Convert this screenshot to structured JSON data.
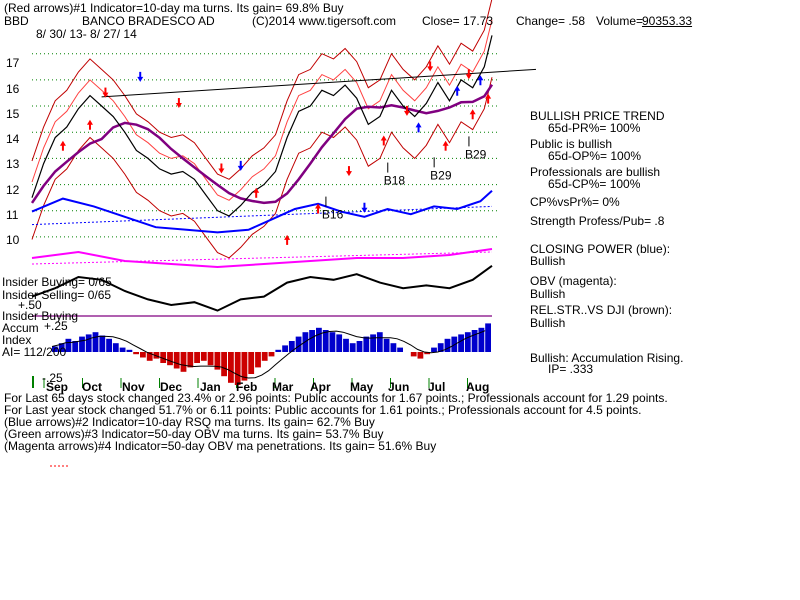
{
  "header": {
    "line1": "(Red arrows)#1 Indicator=10-day ma turns. Its gain= 69.8% Buy",
    "ticker": "BBD",
    "company": "BANCO BRADESCO AD",
    "copyright": "(C)2014 www.tigersoft.com",
    "close": "Close= 17.73",
    "change": "Change= .58",
    "volume_label": "Volume=",
    "volume_value": "90353.33",
    "dates": "8/ 30/ 13- 8/ 27/ 14"
  },
  "chart_data": {
    "type": "line",
    "x_ticks": [
      "Sep",
      "Oct",
      "Nov",
      "Dec",
      "Jan",
      "Feb",
      "Mar",
      "Apr",
      "May",
      "Jun",
      "Jul",
      "Aug"
    ],
    "price_ticks": [
      "17",
      "16",
      "15",
      "14",
      "13",
      "12",
      "11",
      "10"
    ],
    "price_ylim": [
      9.5,
      17.6
    ],
    "price_series": [
      {
        "x": 0,
        "y": 11.5
      },
      {
        "x": 3,
        "y": 12.8
      },
      {
        "x": 6,
        "y": 13.8
      },
      {
        "x": 9,
        "y": 14.2
      },
      {
        "x": 12,
        "y": 14.9
      },
      {
        "x": 15,
        "y": 15.4
      },
      {
        "x": 18,
        "y": 15.0
      },
      {
        "x": 21,
        "y": 14.6
      },
      {
        "x": 24,
        "y": 14.0
      },
      {
        "x": 27,
        "y": 13.3
      },
      {
        "x": 30,
        "y": 13.0
      },
      {
        "x": 33,
        "y": 12.6
      },
      {
        "x": 36,
        "y": 12.4
      },
      {
        "x": 39,
        "y": 12.5
      },
      {
        "x": 42,
        "y": 12.2
      },
      {
        "x": 45,
        "y": 11.6
      },
      {
        "x": 48,
        "y": 11.0
      },
      {
        "x": 51,
        "y": 10.8
      },
      {
        "x": 54,
        "y": 11.2
      },
      {
        "x": 57,
        "y": 11.7
      },
      {
        "x": 60,
        "y": 12.0
      },
      {
        "x": 63,
        "y": 12.5
      },
      {
        "x": 66,
        "y": 13.8
      },
      {
        "x": 69,
        "y": 14.8
      },
      {
        "x": 72,
        "y": 15.0
      },
      {
        "x": 75,
        "y": 15.6
      },
      {
        "x": 78,
        "y": 15.4
      },
      {
        "x": 81,
        "y": 15.8
      },
      {
        "x": 84,
        "y": 15.3
      },
      {
        "x": 87,
        "y": 14.3
      },
      {
        "x": 90,
        "y": 14.6
      },
      {
        "x": 93,
        "y": 15.6
      },
      {
        "x": 96,
        "y": 15.0
      },
      {
        "x": 99,
        "y": 14.6
      },
      {
        "x": 102,
        "y": 15.1
      },
      {
        "x": 105,
        "y": 15.9
      },
      {
        "x": 108,
        "y": 15.2
      },
      {
        "x": 111,
        "y": 16.0
      },
      {
        "x": 114,
        "y": 15.7
      },
      {
        "x": 117,
        "y": 16.5
      },
      {
        "x": 119,
        "y": 17.7
      }
    ],
    "closing_power": [
      {
        "x": 0,
        "y": 3
      },
      {
        "x": 6,
        "y": 6
      },
      {
        "x": 12,
        "y": 10
      },
      {
        "x": 18,
        "y": 9
      },
      {
        "x": 24,
        "y": 5
      },
      {
        "x": 30,
        "y": 2
      },
      {
        "x": 36,
        "y": 0
      },
      {
        "x": 42,
        "y": 1
      },
      {
        "x": 48,
        "y": -2
      },
      {
        "x": 54,
        "y": 2
      },
      {
        "x": 60,
        "y": 3
      },
      {
        "x": 66,
        "y": 8
      },
      {
        "x": 72,
        "y": 10
      },
      {
        "x": 78,
        "y": 9
      },
      {
        "x": 84,
        "y": 11
      },
      {
        "x": 90,
        "y": 8
      },
      {
        "x": 96,
        "y": 6
      },
      {
        "x": 102,
        "y": 7
      },
      {
        "x": 108,
        "y": 6
      },
      {
        "x": 114,
        "y": 9
      },
      {
        "x": 119,
        "y": 14
      }
    ],
    "obv": [
      {
        "x": 0,
        "y": 4
      },
      {
        "x": 12,
        "y": 6
      },
      {
        "x": 24,
        "y": 3
      },
      {
        "x": 36,
        "y": 2
      },
      {
        "x": 48,
        "y": 1
      },
      {
        "x": 60,
        "y": 2
      },
      {
        "x": 72,
        "y": 3
      },
      {
        "x": 84,
        "y": 4
      },
      {
        "x": 96,
        "y": 4
      },
      {
        "x": 108,
        "y": 5
      },
      {
        "x": 119,
        "y": 7
      }
    ],
    "rel_strength": [
      {
        "x": 0,
        "y": 4
      },
      {
        "x": 8,
        "y": 9
      },
      {
        "x": 16,
        "y": 6
      },
      {
        "x": 24,
        "y": 2
      },
      {
        "x": 32,
        "y": -2
      },
      {
        "x": 40,
        "y": -3
      },
      {
        "x": 48,
        "y": -4
      },
      {
        "x": 56,
        "y": -3
      },
      {
        "x": 62,
        "y": 1
      },
      {
        "x": 68,
        "y": 5
      },
      {
        "x": 74,
        "y": 7
      },
      {
        "x": 80,
        "y": 4
      },
      {
        "x": 86,
        "y": 2
      },
      {
        "x": 92,
        "y": 5
      },
      {
        "x": 98,
        "y": 3
      },
      {
        "x": 104,
        "y": 6
      },
      {
        "x": 110,
        "y": 5
      },
      {
        "x": 116,
        "y": 8
      },
      {
        "x": 119,
        "y": 12
      }
    ],
    "accumulation": [
      5,
      8,
      12,
      10,
      14,
      16,
      18,
      15,
      12,
      8,
      4,
      2,
      -2,
      -5,
      -8,
      -6,
      -10,
      -12,
      -15,
      -18,
      -14,
      -10,
      -8,
      -12,
      -16,
      -22,
      -28,
      -30,
      -26,
      -20,
      -14,
      -8,
      -4,
      2,
      6,
      10,
      14,
      18,
      20,
      22,
      20,
      18,
      16,
      12,
      8,
      10,
      14,
      16,
      18,
      12,
      8,
      4,
      0,
      -4,
      -6,
      -2,
      4,
      8,
      12,
      14,
      16,
      18,
      20,
      22,
      26
    ],
    "arrows": [
      {
        "x": 19,
        "y": 15.4,
        "dir": "down",
        "color": "#ff0000"
      },
      {
        "x": 28,
        "y": 16.0,
        "dir": "down",
        "color": "#0000ff"
      },
      {
        "x": 38,
        "y": 15.0,
        "dir": "down",
        "color": "#ff0000"
      },
      {
        "x": 8,
        "y": 13.6,
        "dir": "up",
        "color": "#ff0000"
      },
      {
        "x": 15,
        "y": 14.4,
        "dir": "up",
        "color": "#ff0000"
      },
      {
        "x": 49,
        "y": 12.5,
        "dir": "down",
        "color": "#ff0000"
      },
      {
        "x": 54,
        "y": 12.6,
        "dir": "down",
        "color": "#0000ff"
      },
      {
        "x": 58,
        "y": 11.8,
        "dir": "up",
        "color": "#ff0000"
      },
      {
        "x": 66,
        "y": 10.0,
        "dir": "up",
        "color": "#ff0000"
      },
      {
        "x": 74,
        "y": 11.2,
        "dir": "up",
        "color": "#ff0000"
      },
      {
        "x": 82,
        "y": 12.4,
        "dir": "down",
        "color": "#ff0000"
      },
      {
        "x": 86,
        "y": 11.0,
        "dir": "down",
        "color": "#0000ff"
      },
      {
        "x": 91,
        "y": 13.8,
        "dir": "up",
        "color": "#ff0000"
      },
      {
        "x": 97,
        "y": 14.7,
        "dir": "down",
        "color": "#ff0000"
      },
      {
        "x": 100,
        "y": 14.3,
        "dir": "up",
        "color": "#0000ff"
      },
      {
        "x": 103,
        "y": 16.4,
        "dir": "down",
        "color": "#ff0000"
      },
      {
        "x": 107,
        "y": 13.6,
        "dir": "up",
        "color": "#ff0000"
      },
      {
        "x": 110,
        "y": 15.7,
        "dir": "up",
        "color": "#0000ff"
      },
      {
        "x": 113,
        "y": 16.1,
        "dir": "down",
        "color": "#ff0000"
      },
      {
        "x": 114,
        "y": 14.8,
        "dir": "up",
        "color": "#ff0000"
      },
      {
        "x": 118,
        "y": 15.4,
        "dir": "up",
        "color": "#ff0000"
      },
      {
        "x": 116,
        "y": 16.1,
        "dir": "up",
        "color": "#0000ff"
      }
    ],
    "annotations": [
      {
        "text": "B18",
        "x": 91,
        "y": 12.0
      },
      {
        "text": "B29",
        "x": 103,
        "y": 12.2
      },
      {
        "text": "B29",
        "x": 112,
        "y": 13.0
      },
      {
        "text": "B16",
        "x": 75,
        "y": 10.7
      }
    ],
    "accum_ticks": [
      "+.25",
      "+.50",
      "-.25"
    ],
    "insider_labels": [
      "Insider Buying= 0/65",
      "Insider Selling= 0/65",
      "Insider Buying"
    ]
  },
  "side_panel": {
    "trend_title": "BULLISH PRICE TREND",
    "trend_value": "65d-PR%= 100%",
    "public_title": "Public is bullish",
    "public_value": "65d-OP%= 100%",
    "pros_title": "Professionals are bullish",
    "pros_value": "65d-CP%= 100%",
    "cpvspr": "CP%vsPr%= 0%",
    "strength": "Strength Profess/Pub= .8",
    "closing_power_title": "CLOSING POWER (blue):",
    "closing_power_value": "Bullish",
    "obv_title": "OBV (magenta):",
    "obv_value": "Bullish",
    "relstr_title": "REL.STR..VS DJI (brown):",
    "relstr_value": "Bullish",
    "accum_title": "Bullish: Accumulation Rising.",
    "ip_value": "IP= .333"
  },
  "left_labels": {
    "accum": "Accum",
    "index": "Index",
    "ai": "AI= 112/200"
  },
  "footer": {
    "line1": "For Last 65 days stock changed 23.4% or 2.96 points: Public accounts for 1.67 points.; Professionals account for 1.29 points.",
    "line2": "For Last year stock changed 51.7% or 6.11 points: Public accounts for 1.61 points.; Professionals account for 4.5 points.",
    "line3": "(Blue arrows)#2 Indicator=10-day RSQ ma turns. Its gain= 62.7% Buy",
    "line4": "(Green arrows)#3 Indicator=50-day OBV ma turns. Its gain= 53.7% Buy",
    "line5": "(Magenta arrows)#4 Indicator=50-day OBV ma penetrations. Its gain= 51.6% Buy"
  }
}
